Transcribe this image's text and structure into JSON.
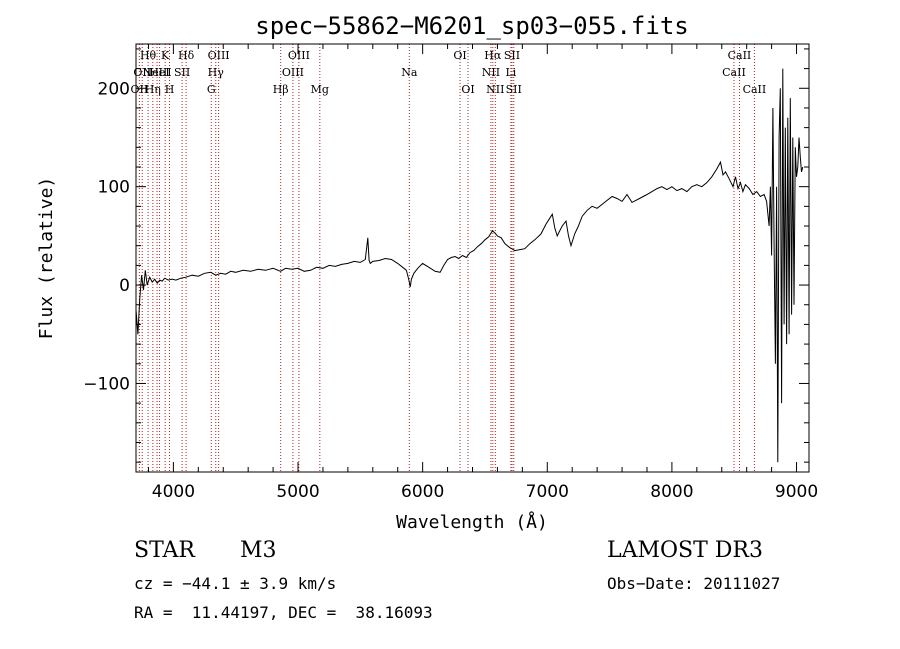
{
  "chart_data": {
    "type": "line",
    "title": "spec−55862−M6201_sp03−055.fits",
    "xlabel": "Wavelength (Å)",
    "ylabel": "Flux (relative)",
    "xlim": [
      3700,
      9100
    ],
    "ylim": [
      -190,
      245
    ],
    "x_ticks": [
      4000,
      5000,
      6000,
      7000,
      8000,
      9000
    ],
    "x_tick_labels": [
      "4000",
      "5000",
      "6000",
      "7000",
      "8000",
      "9000"
    ],
    "y_ticks": [
      -100,
      0,
      100,
      200
    ],
    "y_tick_labels": [
      "−100",
      "0",
      "100",
      "200"
    ],
    "series": [
      {
        "name": "flux",
        "x": [
          3700,
          3715,
          3730,
          3745,
          3760,
          3775,
          3790,
          3810,
          3830,
          3850,
          3870,
          3890,
          3910,
          3930,
          3960,
          3990,
          4020,
          4060,
          4100,
          4150,
          4200,
          4250,
          4300,
          4340,
          4380,
          4420,
          4460,
          4500,
          4560,
          4620,
          4680,
          4740,
          4800,
          4860,
          4900,
          4950,
          5000,
          5050,
          5100,
          5150,
          5200,
          5250,
          5300,
          5350,
          5400,
          5450,
          5500,
          5540,
          5560,
          5570,
          5580,
          5600,
          5650,
          5700,
          5750,
          5800,
          5840,
          5870,
          5890,
          5900,
          5910,
          5930,
          5960,
          6000,
          6050,
          6100,
          6140,
          6170,
          6200,
          6230,
          6260,
          6290,
          6320,
          6350,
          6380,
          6410,
          6440,
          6470,
          6500,
          6530,
          6560,
          6580,
          6600,
          6630,
          6660,
          6700,
          6740,
          6780,
          6820,
          6860,
          6900,
          6950,
          6990,
          7020,
          7040,
          7060,
          7080,
          7100,
          7120,
          7150,
          7170,
          7190,
          7220,
          7250,
          7280,
          7320,
          7360,
          7400,
          7440,
          7480,
          7520,
          7560,
          7600,
          7640,
          7680,
          7710,
          7740,
          7770,
          7800,
          7840,
          7880,
          7920,
          7960,
          8000,
          8040,
          8080,
          8120,
          8160,
          8200,
          8240,
          8280,
          8320,
          8360,
          8390,
          8410,
          8430,
          8460,
          8490,
          8510,
          8530,
          8550,
          8570,
          8590,
          8620,
          8650,
          8680,
          8710,
          8740,
          8760,
          8780,
          8790,
          8800,
          8810,
          8820,
          8830,
          8840,
          8850,
          8860,
          8870,
          8880,
          8890,
          8900,
          8910,
          8920,
          8930,
          8940,
          8950,
          8960,
          8970,
          8980,
          8990,
          9000,
          9010,
          9020,
          9030,
          9040,
          9050
        ],
        "y": [
          -25,
          -50,
          -15,
          10,
          -5,
          15,
          0,
          8,
          3,
          6,
          2,
          5,
          4,
          7,
          5,
          6,
          5,
          7,
          8,
          10,
          9,
          12,
          13,
          10,
          12,
          11,
          14,
          13,
          15,
          14,
          16,
          15,
          17,
          14,
          17,
          16,
          17,
          14,
          15,
          18,
          17,
          20,
          19,
          21,
          22,
          24,
          23,
          26,
          48,
          25,
          22,
          24,
          25,
          27,
          26,
          22,
          18,
          15,
          5,
          -2,
          6,
          12,
          17,
          22,
          18,
          14,
          13,
          20,
          26,
          28,
          29,
          27,
          30,
          28,
          33,
          35,
          39,
          42,
          46,
          49,
          55,
          53,
          50,
          48,
          42,
          38,
          35,
          36,
          37,
          42,
          46,
          52,
          62,
          68,
          72,
          58,
          50,
          55,
          60,
          65,
          50,
          40,
          52,
          60,
          70,
          76,
          80,
          78,
          82,
          86,
          90,
          88,
          85,
          92,
          84,
          86,
          88,
          90,
          92,
          95,
          98,
          100,
          97,
          100,
          96,
          98,
          95,
          100,
          102,
          100,
          104,
          110,
          118,
          125,
          112,
          115,
          108,
          100,
          110,
          98,
          104,
          95,
          102,
          98,
          92,
          95,
          90,
          92,
          85,
          60,
          100,
          30,
          180,
          40,
          -80,
          100,
          -180,
          150,
          200,
          -120,
          220,
          -40,
          160,
          -60,
          170,
          -50,
          190,
          -30,
          150,
          -20,
          140,
          110,
          120,
          150,
          130,
          115,
          120
        ]
      }
    ],
    "lines": [
      {
        "wave": 3727,
        "label": "OII",
        "row": 2
      },
      {
        "wave": 3750,
        "label": "OII",
        "row": 1
      },
      {
        "wave": 3797,
        "label": "Hθ",
        "row": 0
      },
      {
        "wave": 3835,
        "label": "Hη",
        "row": 2
      },
      {
        "wave": 3869,
        "label": "NeIII",
        "row": 1
      },
      {
        "wave": 3889,
        "label": "HeI",
        "row": 1
      },
      {
        "wave": 3934,
        "label": "K",
        "row": 0
      },
      {
        "wave": 3969,
        "label": "H",
        "row": 2
      },
      {
        "wave": 4070,
        "label": "SII",
        "row": 1
      },
      {
        "wave": 4102,
        "label": "Hδ",
        "row": 0
      },
      {
        "wave": 4304,
        "label": "G",
        "row": 2
      },
      {
        "wave": 4340,
        "label": "Hγ",
        "row": 1
      },
      {
        "wave": 4363,
        "label": "OIII",
        "row": 0
      },
      {
        "wave": 4861,
        "label": "Hβ",
        "row": 2
      },
      {
        "wave": 4959,
        "label": "OIII",
        "row": 1
      },
      {
        "wave": 5007,
        "label": "OIII",
        "row": 0
      },
      {
        "wave": 5175,
        "label": "Mg",
        "row": 2
      },
      {
        "wave": 5893,
        "label": "Na",
        "row": 1
      },
      {
        "wave": 6300,
        "label": "OI",
        "row": 0
      },
      {
        "wave": 6364,
        "label": "OI",
        "row": 2
      },
      {
        "wave": 6548,
        "label": "NII",
        "row": 1
      },
      {
        "wave": 6563,
        "label": "Hα",
        "row": 0
      },
      {
        "wave": 6583,
        "label": "NII",
        "row": 2
      },
      {
        "wave": 6708,
        "label": "Li",
        "row": 1
      },
      {
        "wave": 6717,
        "label": "SII",
        "row": 0
      },
      {
        "wave": 6731,
        "label": "SII",
        "row": 2
      },
      {
        "wave": 8498,
        "label": "CaII",
        "row": 1
      },
      {
        "wave": 8542,
        "label": "CaII",
        "row": 0
      },
      {
        "wave": 8662,
        "label": "CaII",
        "row": 2
      }
    ]
  },
  "info": {
    "class_label": "STAR",
    "subclass": "M3",
    "survey": "LAMOST DR3",
    "cz": "cz = −44.1 ± 3.9 km/s",
    "obs_date": "Obs−Date: 20111027",
    "coords": "RA =  11.44197, DEC =  38.16093"
  },
  "colors": {
    "spectrum": "#000000",
    "lines": "#b22222",
    "axes": "#000000"
  }
}
